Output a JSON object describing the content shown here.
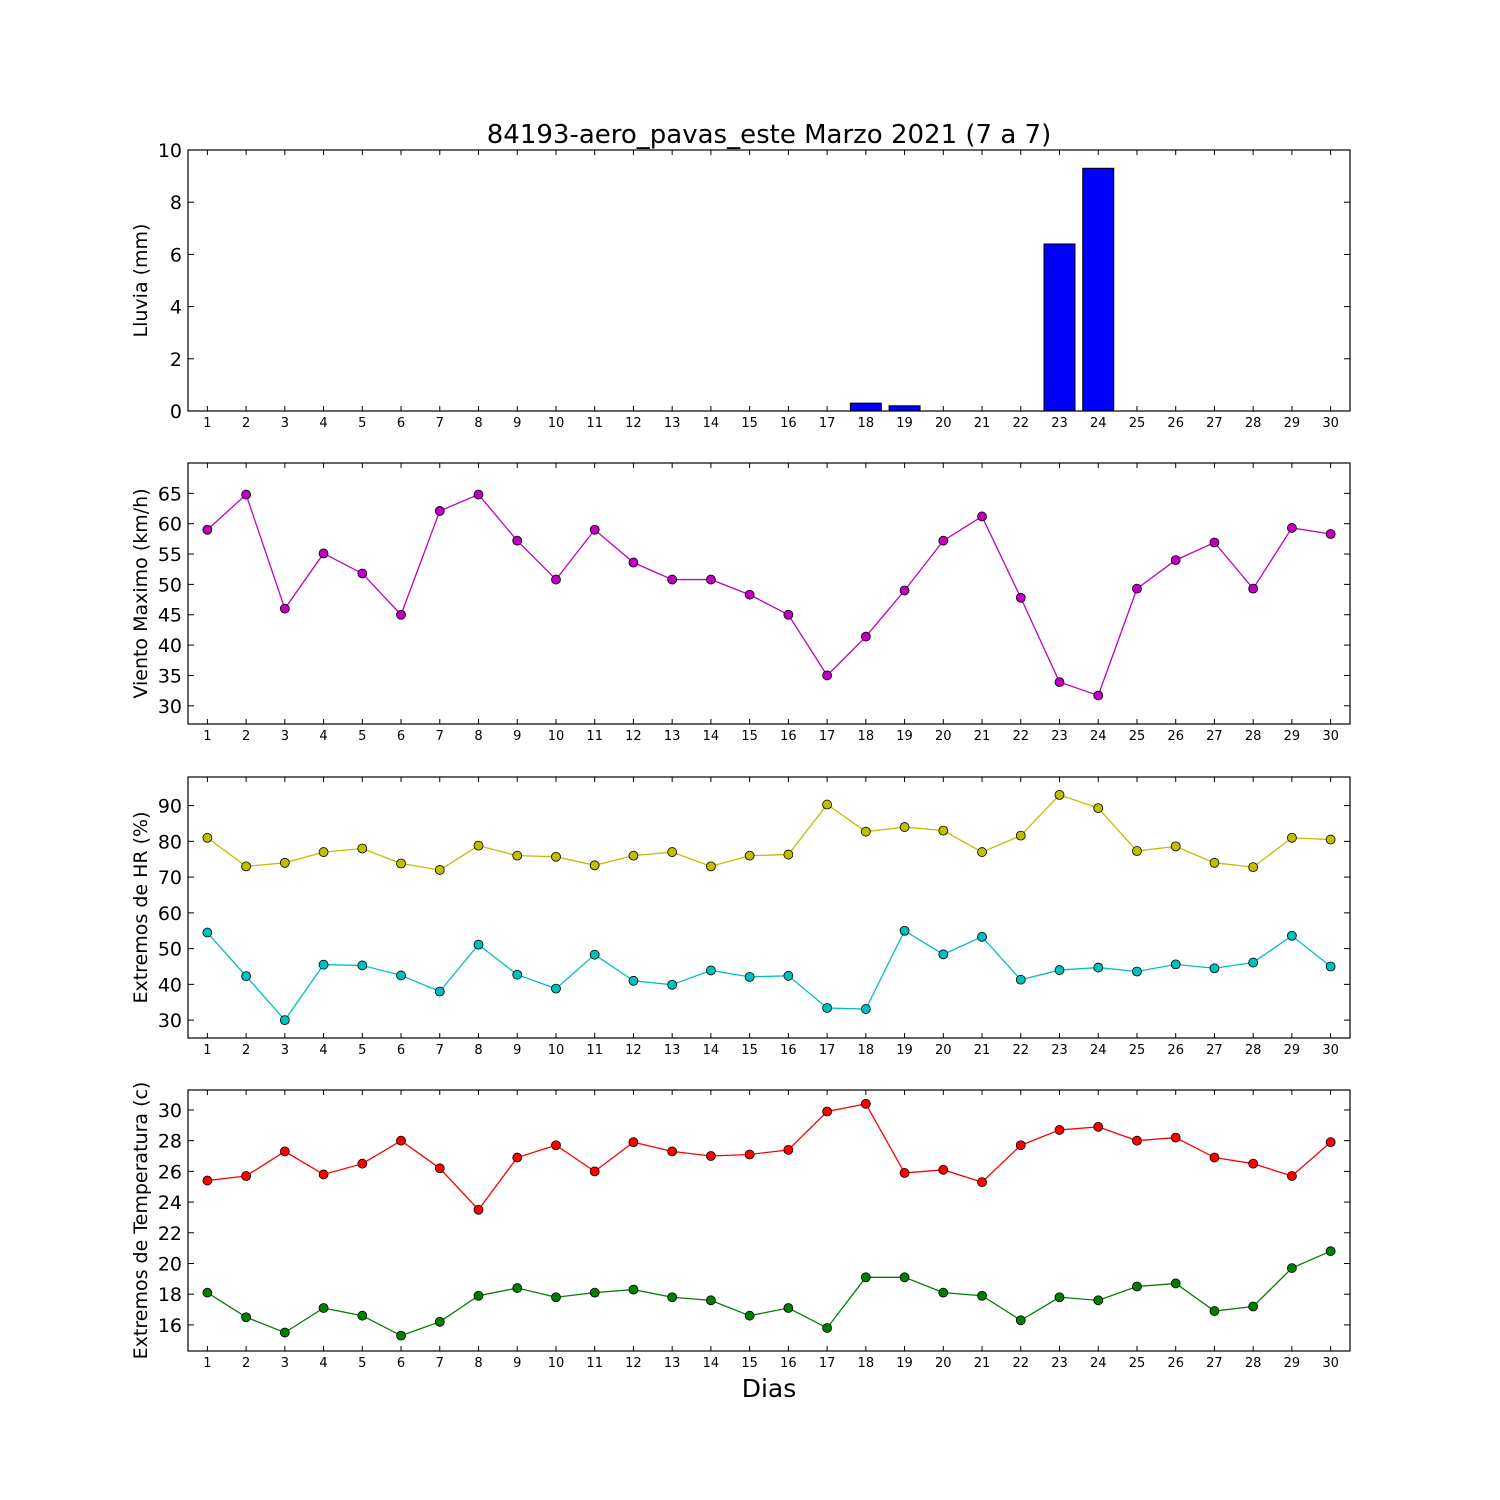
{
  "figure": {
    "title": "84193-aero_pavas_este Marzo 2021  (7 a 7)",
    "xlabel": "Dias"
  },
  "chart_data": [
    {
      "type": "bar",
      "ylabel": "Lluvia (mm)",
      "categories": [
        1,
        2,
        3,
        4,
        5,
        6,
        7,
        8,
        9,
        10,
        11,
        12,
        13,
        14,
        15,
        16,
        17,
        18,
        19,
        20,
        21,
        22,
        23,
        24,
        25,
        26,
        27,
        28,
        29,
        30
      ],
      "series": [
        {
          "color": "#0000ff",
          "values": [
            0,
            0,
            0,
            0,
            0,
            0,
            0,
            0,
            0,
            0,
            0,
            0,
            0,
            0,
            0,
            0,
            0,
            0.3,
            0.2,
            0,
            0,
            0,
            6.4,
            9.3,
            0,
            0,
            0,
            0,
            0,
            0
          ]
        }
      ],
      "ylim": [
        0,
        10
      ],
      "yticks": [
        0,
        2,
        4,
        6,
        8,
        10
      ],
      "grid": false
    },
    {
      "type": "line",
      "ylabel": "Viento Maximo (km/h)",
      "x": [
        1,
        2,
        3,
        4,
        5,
        6,
        7,
        8,
        9,
        10,
        11,
        12,
        13,
        14,
        15,
        16,
        17,
        18,
        19,
        20,
        21,
        22,
        23,
        24,
        25,
        26,
        27,
        28,
        29,
        30
      ],
      "series": [
        {
          "color": "#bf00bf",
          "values": [
            59,
            64.8,
            46,
            55.1,
            51.8,
            45,
            62.1,
            64.8,
            57.2,
            50.8,
            59,
            53.6,
            50.8,
            50.8,
            48.3,
            45,
            35,
            41.4,
            49,
            57.2,
            61.2,
            47.8,
            33.9,
            31.7,
            49.3,
            54,
            56.9,
            49.3,
            59.3,
            58.3
          ]
        }
      ],
      "ylim": [
        27,
        70
      ],
      "yticks": [
        30,
        35,
        40,
        45,
        50,
        55,
        60,
        65
      ],
      "grid": false
    },
    {
      "type": "line",
      "ylabel": "Extremos de HR (%)",
      "x": [
        1,
        2,
        3,
        4,
        5,
        6,
        7,
        8,
        9,
        10,
        11,
        12,
        13,
        14,
        15,
        16,
        17,
        18,
        19,
        20,
        21,
        22,
        23,
        24,
        25,
        26,
        27,
        28,
        29,
        30
      ],
      "series": [
        {
          "color": "#bfbf00",
          "values": [
            81,
            73,
            74,
            77,
            78,
            73.8,
            72,
            78.8,
            76,
            75.7,
            73.3,
            76,
            77,
            73,
            76,
            76.3,
            90.3,
            82.7,
            84,
            83,
            77,
            81.6,
            93,
            89.3,
            77.3,
            78.6,
            74,
            72.8,
            81,
            80.5
          ]
        },
        {
          "color": "#00bfbf",
          "values": [
            54.5,
            42.3,
            30,
            45.5,
            45.3,
            42.5,
            38,
            51.1,
            42.7,
            38.8,
            48.3,
            41,
            39.9,
            43.9,
            42.1,
            42.4,
            33.4,
            33.1,
            55,
            48.4,
            53.3,
            41.3,
            44,
            44.7,
            43.6,
            45.6,
            44.5,
            46.1,
            53.6,
            45
          ]
        }
      ],
      "ylim": [
        25,
        98
      ],
      "yticks": [
        30,
        40,
        50,
        60,
        70,
        80,
        90
      ],
      "grid": false
    },
    {
      "type": "line",
      "ylabel": "Extremos de Temperatura (c)",
      "x": [
        1,
        2,
        3,
        4,
        5,
        6,
        7,
        8,
        9,
        10,
        11,
        12,
        13,
        14,
        15,
        16,
        17,
        18,
        19,
        20,
        21,
        22,
        23,
        24,
        25,
        26,
        27,
        28,
        29,
        30
      ],
      "series": [
        {
          "color": "#ff0000",
          "values": [
            25.4,
            25.7,
            27.3,
            25.8,
            26.5,
            28,
            26.2,
            23.5,
            26.9,
            27.7,
            26,
            27.9,
            27.3,
            27,
            27.1,
            27.4,
            29.9,
            30.4,
            25.9,
            26.1,
            25.3,
            27.7,
            28.7,
            28.9,
            28,
            28.2,
            26.9,
            26.5,
            25.7,
            27.9
          ]
        },
        {
          "color": "#007f00",
          "values": [
            18.1,
            16.5,
            15.5,
            17.1,
            16.6,
            15.3,
            16.2,
            17.9,
            18.4,
            17.8,
            18.1,
            18.3,
            17.8,
            17.6,
            16.6,
            17.1,
            15.8,
            19.1,
            19.1,
            18.1,
            17.9,
            16.3,
            17.8,
            17.6,
            18.5,
            18.7,
            16.9,
            17.2,
            19.7,
            20.8
          ]
        }
      ],
      "ylim": [
        14.3,
        31.3
      ],
      "yticks": [
        16,
        18,
        20,
        22,
        24,
        26,
        28,
        30
      ],
      "grid": false
    }
  ]
}
